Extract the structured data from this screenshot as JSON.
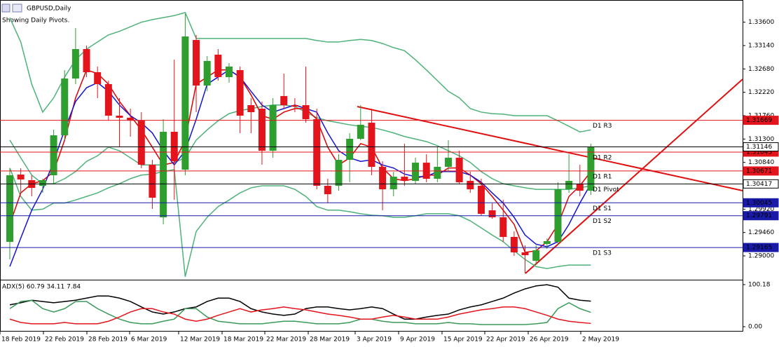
{
  "chart_data": [
    {
      "type": "candlestick",
      "title": "GBPUSD,Daily",
      "subtitle": "Showing Daily Pivots.",
      "x_labels": [
        "18 Feb 2019",
        "22 Feb 2019",
        "28 Feb 2019",
        "6 Mar 2019",
        "12 Mar 2019",
        "18 Mar 2019",
        "22 Mar 2019",
        "28 Mar 2019",
        "3 Apr 2019",
        "9 Apr 2019",
        "15 Apr 2019",
        "22 Apr 2019",
        "26 Apr 2019",
        "2 May 2019"
      ],
      "up_color": "#2e9e2e",
      "down_color": "#e3141b",
      "open": [
        1.29276,
        1.30601,
        1.3049,
        1.3038,
        1.30587,
        1.31374,
        1.32491,
        1.33071,
        1.32616,
        1.32381,
        1.3176,
        1.31719,
        1.31663,
        1.30794,
        1.29759,
        1.31443,
        1.30697,
        1.3325,
        1.32353,
        1.32961,
        1.32519,
        1.32657,
        1.31967,
        1.31898,
        1.3107,
        1.32146,
        1.31967,
        1.31967,
        1.31691,
        1.3038,
        1.3038,
        1.30891,
        1.31305,
        1.31622,
        1.30753,
        1.30311,
        1.30559,
        1.30477,
        1.30835,
        1.30518,
        1.30753,
        1.30932,
        1.30477,
        1.3038,
        1.29897,
        1.29759,
        1.29373,
        1.29069,
        1.28903,
        1.29235,
        1.29276,
        1.30311,
        1.30421,
        1.30283
      ],
      "high": [
        1.30725,
        1.30725,
        1.30587,
        1.30518,
        1.31484,
        1.32657,
        1.33485,
        1.3314,
        1.32726,
        1.3245,
        1.32105,
        1.31898,
        1.31829,
        1.30891,
        1.31691,
        1.32864,
        1.33761,
        1.33347,
        1.32933,
        1.33071,
        1.32795,
        1.32726,
        1.32105,
        1.32036,
        1.32105,
        1.32588,
        1.32105,
        1.32726,
        1.31898,
        1.30518,
        1.31001,
        1.31415,
        1.31967,
        1.31898,
        1.30863,
        1.30656,
        1.31208,
        1.30932,
        1.31001,
        1.31139,
        1.31277,
        1.3107,
        1.30656,
        1.30518,
        1.30035,
        1.30104,
        1.29483,
        1.29207,
        1.29207,
        1.29345,
        1.30449,
        1.31001,
        1.30794,
        1.31208
      ],
      "low": [
        1.28931,
        1.30242,
        1.30173,
        1.30242,
        1.30421,
        1.31277,
        1.32381,
        1.32519,
        1.32105,
        1.31663,
        1.31139,
        1.31346,
        1.30725,
        1.29925,
        1.29621,
        1.30104,
        1.30587,
        1.31829,
        1.32243,
        1.3245,
        1.32409,
        1.31415,
        1.31415,
        1.30794,
        1.30932,
        1.31898,
        1.31829,
        1.31622,
        1.30311,
        1.30035,
        1.30283,
        1.30449,
        1.31277,
        1.30587,
        1.29897,
        1.30173,
        1.3038,
        1.30421,
        1.30449,
        1.30449,
        1.30656,
        1.30421,
        1.30242,
        1.29787,
        1.29731,
        1.29276,
        1.29,
        1.28655,
        1.28821,
        1.29138,
        1.29207,
        1.30242,
        1.30173,
        1.30201
      ],
      "close": [
        1.30587,
        1.30504,
        1.30339,
        1.3049,
        1.31374,
        1.32491,
        1.33071,
        1.32616,
        1.32381,
        1.3176,
        1.31719,
        1.31663,
        1.30794,
        1.30145,
        1.31443,
        1.30863,
        1.33319,
        1.32353,
        1.32836,
        1.32519,
        1.32726,
        1.3176,
        1.31829,
        1.3107,
        1.31967,
        1.31967,
        1.31939,
        1.31691,
        1.3038,
        1.30214,
        1.30891,
        1.31305,
        1.31581,
        1.30753,
        1.30311,
        1.30559,
        1.30477,
        1.30835,
        1.30518,
        1.30753,
        1.30932,
        1.30449,
        1.30311,
        1.29828,
        1.29759,
        1.29373,
        1.29069,
        1.29014,
        1.2911,
        1.2929,
        1.30311,
        1.30477,
        1.30283,
        1.31139
      ],
      "series": [
        {
          "color": "#4fb27a",
          "values": [
            1.3369,
            1.3321,
            1.3238,
            1.3183,
            1.3211,
            1.3252,
            1.3286,
            1.3307,
            1.3321,
            1.3335,
            1.3342,
            1.3351,
            1.336,
            1.3365,
            1.3369,
            1.3373,
            1.3379,
            1.3328,
            1.3328,
            1.3328,
            1.3328,
            1.3328,
            1.3328,
            1.3328,
            1.3328,
            1.3328,
            1.3328,
            1.3328,
            1.3324,
            1.3321,
            1.3321,
            1.3324,
            1.3326,
            1.3324,
            1.3318,
            1.331,
            1.3304,
            1.3286,
            1.3266,
            1.3245,
            1.3224,
            1.3211,
            1.319,
            1.3183,
            1.318,
            1.3179,
            1.3176,
            1.3176,
            1.3176,
            1.3176,
            1.3166,
            1.3155,
            1.3144,
            1.3148
          ]
        },
        {
          "color": "#4fb27a",
          "values": [
            1.3128,
            1.3093,
            1.3059,
            1.3042,
            1.3042,
            1.3052,
            1.3066,
            1.3086,
            1.3097,
            1.3114,
            1.3107,
            1.3093,
            1.3079,
            1.3079,
            1.3079,
            1.3084,
            1.3093,
            1.3128,
            1.3148,
            1.3166,
            1.318,
            1.3186,
            1.319,
            1.3194,
            1.3197,
            1.3197,
            1.3194,
            1.3183,
            1.3172,
            1.3166,
            1.3162,
            1.3158,
            1.3155,
            1.3153,
            1.3148,
            1.3142,
            1.3135,
            1.313,
            1.3125,
            1.3117,
            1.3107,
            1.3097,
            1.3084,
            1.3066,
            1.3052,
            1.3042,
            1.3038,
            1.3034,
            1.3031,
            1.3031,
            1.3031,
            1.3031,
            1.3034,
            1.3038
          ]
        },
        {
          "color": "#4fb27a",
          "values": [
            1.3073,
            1.3017,
            1.299,
            1.2992,
            1.3004,
            1.3004,
            1.301,
            1.3017,
            1.3024,
            1.3034,
            1.3042,
            1.3052,
            1.3059,
            1.3061,
            1.3066,
            1.307,
            1.2859,
            1.2948,
            1.2976,
            1.2997,
            1.301,
            1.3024,
            1.3034,
            1.3038,
            1.3038,
            1.3038,
            1.3031,
            1.3017,
            1.2997,
            1.299,
            1.299,
            1.2987,
            1.2983,
            1.298,
            1.2979,
            1.2976,
            1.2976,
            1.2979,
            1.2983,
            1.2983,
            1.2983,
            1.2979,
            1.2969,
            1.2955,
            1.2941,
            1.2928,
            1.291,
            1.2893,
            1.2879,
            1.2875,
            1.2879,
            1.2882,
            1.2882,
            1.2882
          ]
        },
        {
          "color": "#e00000",
          "values": [
            1.2962,
            1.3024,
            1.3042,
            1.3048,
            1.3066,
            1.3128,
            1.3211,
            1.3266,
            1.3259,
            1.3238,
            1.3204,
            1.3176,
            1.3148,
            1.3114,
            1.3079,
            1.3084,
            1.3128,
            1.3238,
            1.3252,
            1.3266,
            1.3266,
            1.3252,
            1.3217,
            1.3176,
            1.3169,
            1.3183,
            1.319,
            1.319,
            1.3169,
            1.3114,
            1.3079,
            1.3093,
            1.3121,
            1.3114,
            1.3073,
            1.3052,
            1.3048,
            1.3052,
            1.3059,
            1.3059,
            1.3073,
            1.3073,
            1.3059,
            1.3042,
            1.3017,
            1.299,
            1.2962,
            1.2907,
            1.291,
            1.2928,
            1.2962,
            1.3017,
            1.3038,
            1.3066
          ]
        },
        {
          "color": "#1414d2",
          "values": [
            1.2879,
            1.2935,
            1.299,
            1.3031,
            1.3086,
            1.3148,
            1.3204,
            1.3231,
            1.3241,
            1.3224,
            1.3197,
            1.3176,
            1.3162,
            1.3142,
            1.3107,
            1.3079,
            1.3107,
            1.3169,
            1.3238,
            1.3252,
            1.3266,
            1.3252,
            1.3224,
            1.3197,
            1.3183,
            1.319,
            1.3197,
            1.319,
            1.3183,
            1.3142,
            1.3107,
            1.3093,
            1.3086,
            1.3089,
            1.3079,
            1.3073,
            1.3061,
            1.3056,
            1.3056,
            1.3066,
            1.3066,
            1.3066,
            1.3059,
            1.3045,
            1.3024,
            1.3004,
            1.2976,
            1.2941,
            1.2923,
            1.2918,
            1.2928,
            1.2962,
            1.3004,
            1.3042
          ]
        }
      ],
      "levels": [
        {
          "name": "D1 R3",
          "value": 1.31669,
          "color": "#e3141b"
        },
        {
          "name": "D1 R2",
          "value": 1.31043,
          "color": "#e3141b"
        },
        {
          "name": "D1 R1",
          "value": 1.30671,
          "color": "#e3141b"
        },
        {
          "name": "D1 Pivot",
          "value": 1.30417,
          "color": "#000000"
        },
        {
          "name": "D1 S1",
          "value": 1.30045,
          "color": "#1a1aa8"
        },
        {
          "name": "D1 S2",
          "value": 1.29791,
          "color": "#1a1aa8"
        },
        {
          "name": "D1 S3",
          "value": 1.29165,
          "color": "#1a1aa8"
        }
      ],
      "price_lines": [
        {
          "value": 1.31146,
          "color": "#000000"
        }
      ],
      "ylim": [
        1.28545,
        1.34037
      ],
      "yticks": [
        {
          "value": 1.336,
          "label": "1.33600"
        },
        {
          "value": 1.3314,
          "label": "1.33140"
        },
        {
          "value": 1.3268,
          "label": "1.32680"
        },
        {
          "value": 1.3222,
          "label": "1.32220"
        },
        {
          "value": 1.3176,
          "label": "1.31760"
        },
        {
          "value": 1.313,
          "label": "1.31300"
        },
        {
          "value": 1.3084,
          "label": "1.30840"
        },
        {
          "value": 1.2992,
          "label": "1.29920"
        },
        {
          "value": 1.2946,
          "label": "1.29460"
        },
        {
          "value": 1.29,
          "label": "1.29000"
        }
      ]
    },
    {
      "type": "line",
      "title": "ADX(5) 60.79 34.11 7.84",
      "series": [
        {
          "color": "#000000",
          "values": [
            52,
            57,
            63,
            60,
            57,
            60,
            63,
            68,
            73,
            73,
            68,
            60,
            47,
            35,
            30,
            35,
            43,
            47,
            60,
            68,
            68,
            60,
            43,
            35,
            30,
            27,
            30,
            43,
            47,
            47,
            43,
            40,
            43,
            47,
            43,
            30,
            18,
            18,
            23,
            27,
            30,
            40,
            47,
            52,
            60,
            68,
            80,
            90,
            97,
            100,
            94,
            68,
            63,
            60.79
          ]
        },
        {
          "color": "#3a9a5a",
          "values": [
            43,
            60,
            63,
            43,
            35,
            43,
            60,
            60,
            43,
            30,
            18,
            10,
            7,
            7,
            13,
            18,
            43,
            43,
            23,
            13,
            10,
            7,
            7,
            7,
            10,
            13,
            13,
            10,
            7,
            7,
            7,
            10,
            18,
            18,
            13,
            10,
            10,
            7,
            7,
            7,
            10,
            7,
            7,
            5,
            5,
            5,
            5,
            5,
            7,
            10,
            43,
            57,
            43,
            34.11
          ]
        },
        {
          "color": "#e3141b",
          "values": [
            18,
            10,
            7,
            7,
            7,
            10,
            7,
            7,
            7,
            13,
            23,
            35,
            43,
            43,
            35,
            30,
            18,
            13,
            18,
            27,
            35,
            43,
            35,
            40,
            43,
            47,
            43,
            40,
            35,
            30,
            27,
            23,
            18,
            18,
            23,
            27,
            23,
            18,
            18,
            18,
            23,
            30,
            35,
            40,
            43,
            47,
            47,
            43,
            35,
            27,
            18,
            13,
            10,
            7.84
          ]
        }
      ],
      "ylim": [
        -10,
        110.2
      ],
      "yticks": [
        100.18,
        {
          "value": 0,
          "label": "0.00"
        }
      ]
    }
  ]
}
